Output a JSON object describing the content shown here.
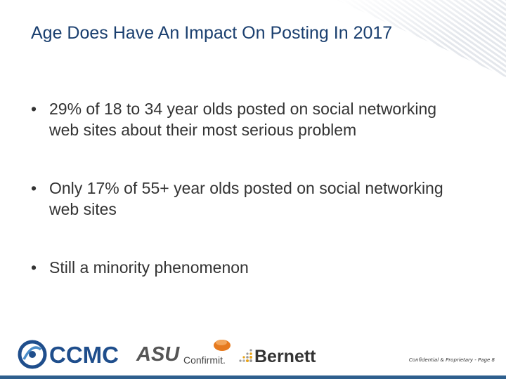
{
  "slide": {
    "title": "Age Does Have An Impact On Posting In 2017",
    "bullets": [
      "29% of 18 to 34 year olds posted on social networking web sites about their most serious problem",
      "Only 17% of 55+ year olds posted on social networking web sites",
      "Still a minority phenomenon"
    ],
    "bullet_symbol": "•"
  },
  "logos": {
    "ccmc": "CCMC",
    "asu": "ASU",
    "confirmit": "Confirmit.",
    "bernett": "Bernett"
  },
  "footer": {
    "text": "Confidential & Proprietary - Page 8"
  },
  "colors": {
    "title": "#1a3f6f",
    "ccmc_blue": "#1f4e8c",
    "confirmit_orange": "#e67a1e",
    "bottom_bar": "#2e5f8e"
  }
}
